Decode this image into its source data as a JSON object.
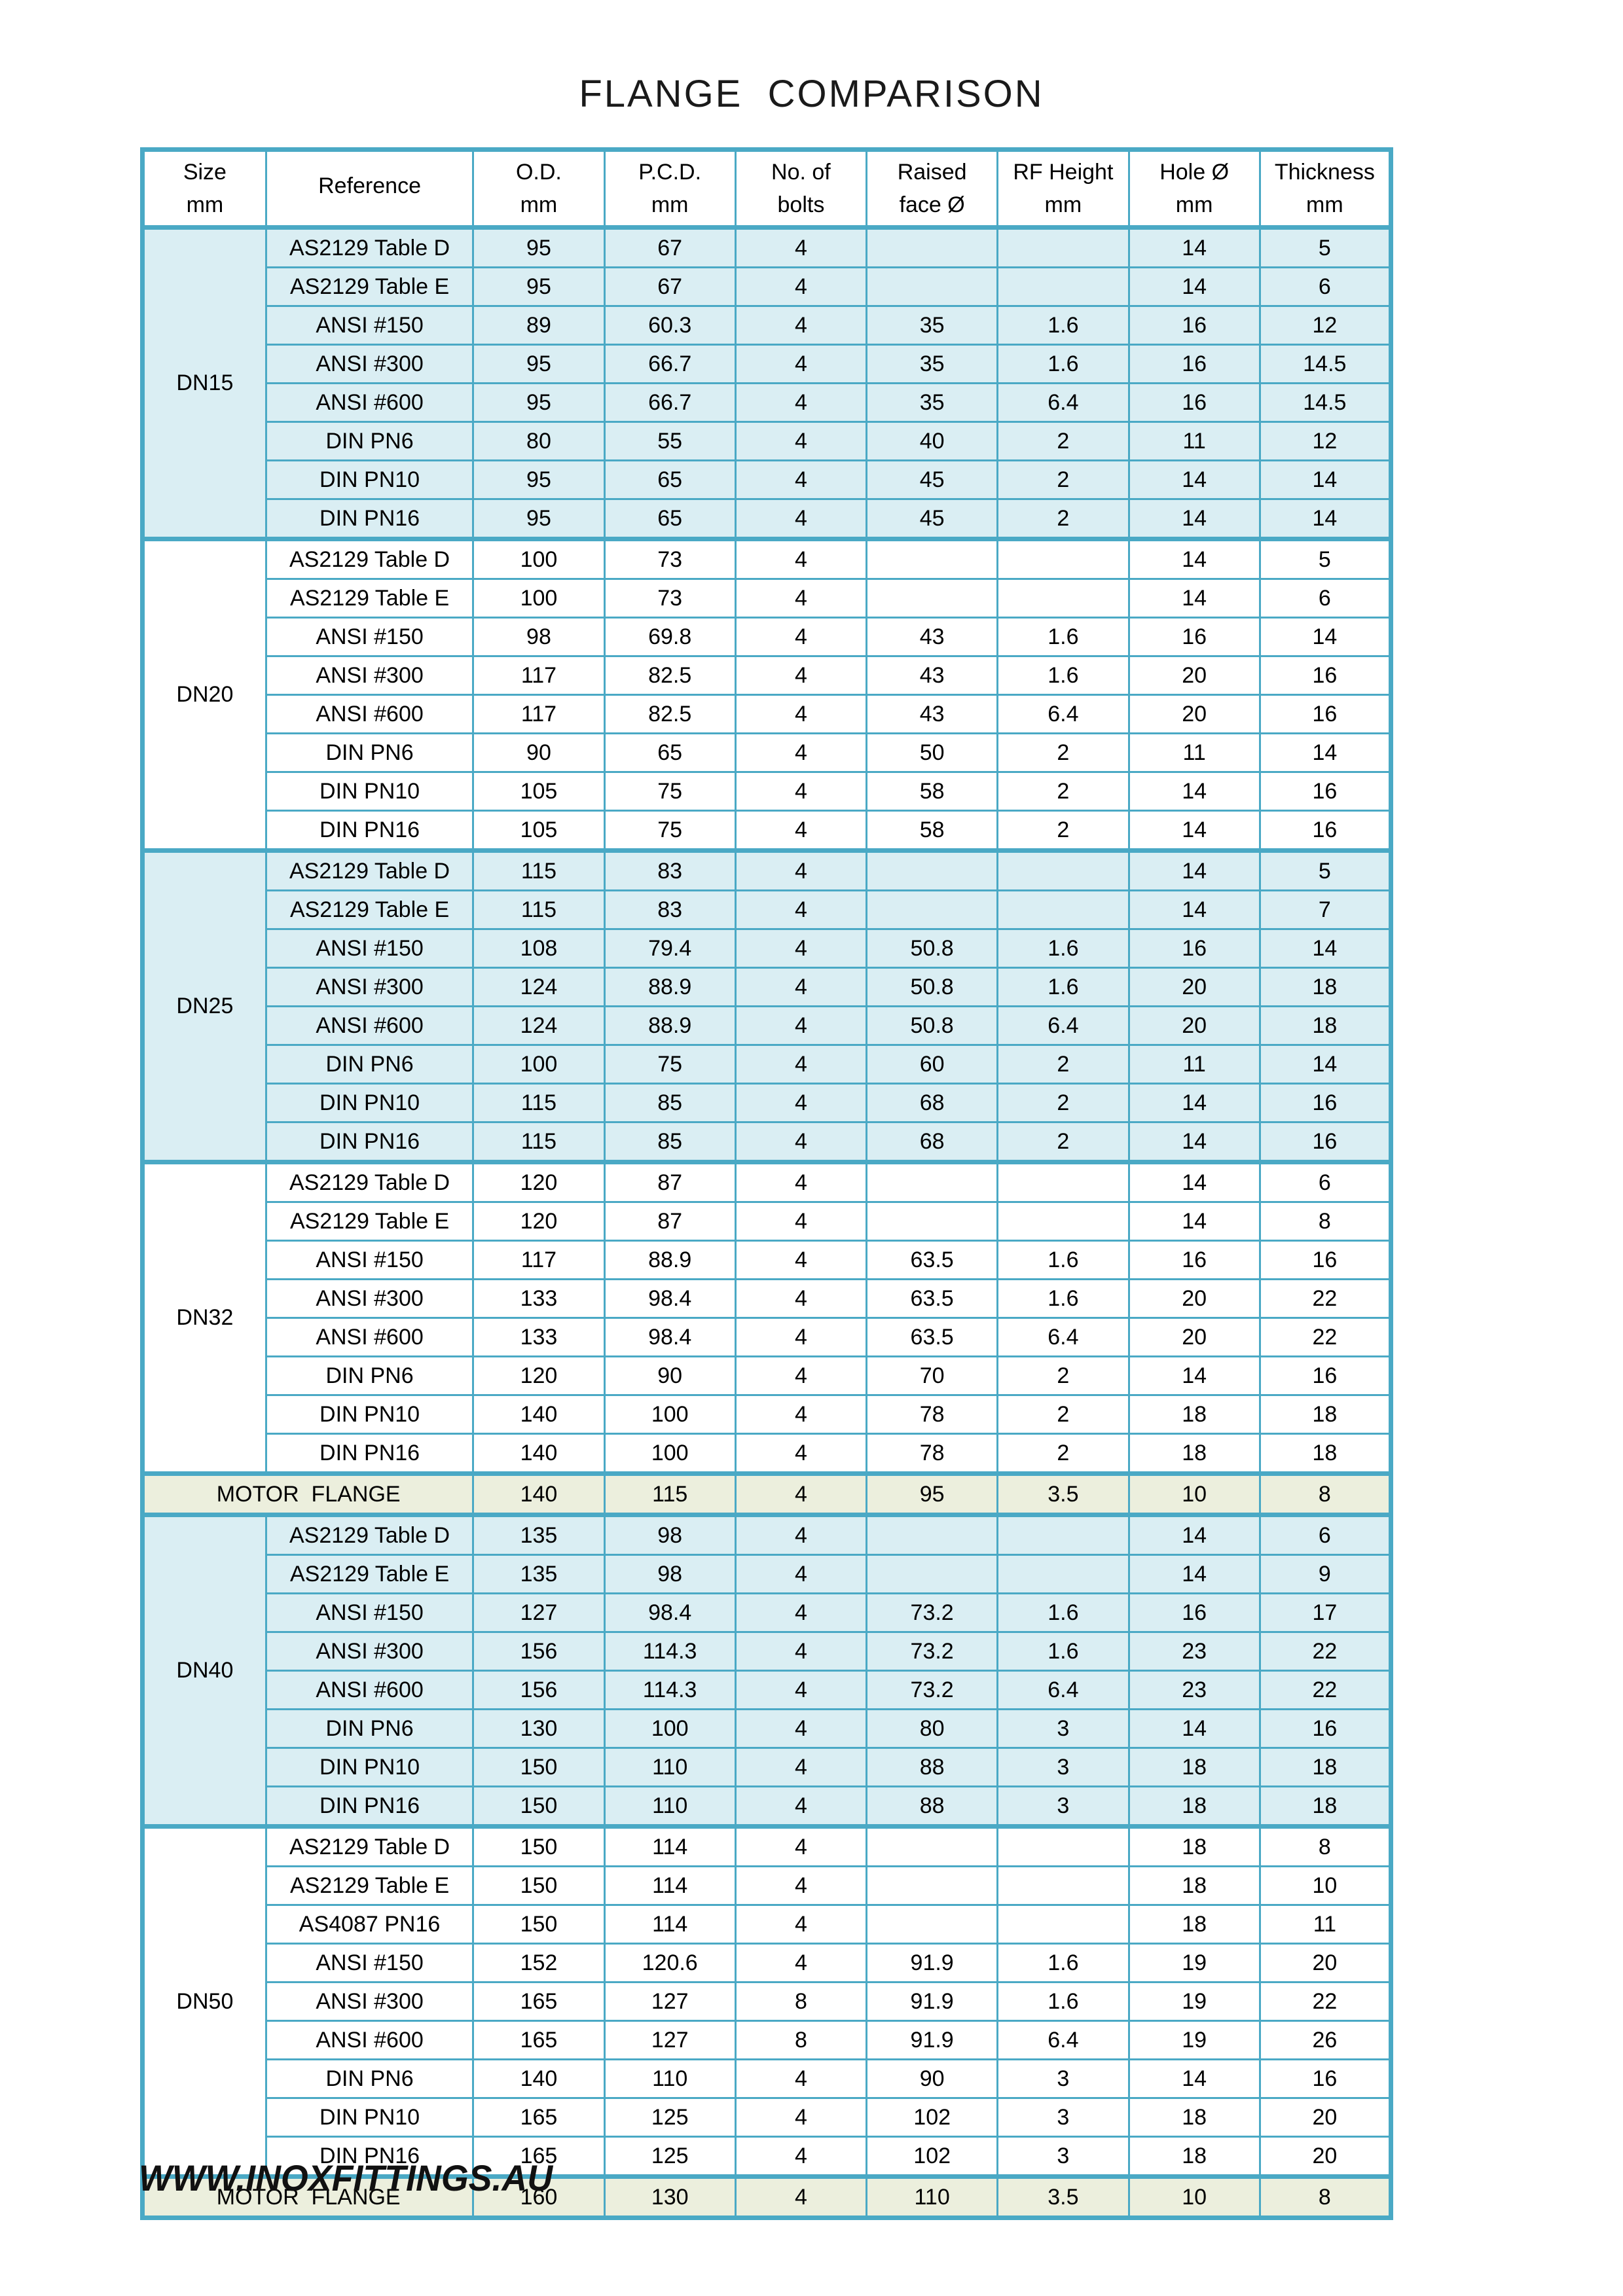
{
  "page": {
    "title": "FLANGE  COMPARISON",
    "footer": "WWW.INOXFITTINGS.AU"
  },
  "colors": {
    "grid_border": "#4aa9c5",
    "block_fill_blue": "#daeef3",
    "block_fill_white": "#ffffff",
    "motor_row_fill": "#ecefdd",
    "text": "#000000",
    "page_bg": "#ffffff"
  },
  "table": {
    "columns": [
      {
        "line1": "Size",
        "line2": "mm"
      },
      {
        "line1": "Reference",
        "line2": ""
      },
      {
        "line1": "O.D.",
        "line2": "mm"
      },
      {
        "line1": "P.C.D.",
        "line2": "mm"
      },
      {
        "line1": "No. of",
        "line2": "bolts"
      },
      {
        "line1": "Raised",
        "line2": "face Ø"
      },
      {
        "line1": "RF Height",
        "line2": "mm"
      },
      {
        "line1": "Hole Ø",
        "line2": "mm"
      },
      {
        "line1": "Thickness",
        "line2": "mm"
      }
    ],
    "groups": [
      {
        "size": "DN15",
        "shade": "blue",
        "rows": [
          {
            "ref": "AS2129 Table D",
            "od": "95",
            "pcd": "67",
            "bolts": "4",
            "rf": "",
            "rfh": "",
            "hole": "14",
            "thk": "5"
          },
          {
            "ref": "AS2129 Table E",
            "od": "95",
            "pcd": "67",
            "bolts": "4",
            "rf": "",
            "rfh": "",
            "hole": "14",
            "thk": "6"
          },
          {
            "ref": "ANSI #150",
            "od": "89",
            "pcd": "60.3",
            "bolts": "4",
            "rf": "35",
            "rfh": "1.6",
            "hole": "16",
            "thk": "12"
          },
          {
            "ref": "ANSI #300",
            "od": "95",
            "pcd": "66.7",
            "bolts": "4",
            "rf": "35",
            "rfh": "1.6",
            "hole": "16",
            "thk": "14.5"
          },
          {
            "ref": "ANSI #600",
            "od": "95",
            "pcd": "66.7",
            "bolts": "4",
            "rf": "35",
            "rfh": "6.4",
            "hole": "16",
            "thk": "14.5"
          },
          {
            "ref": "DIN PN6",
            "od": "80",
            "pcd": "55",
            "bolts": "4",
            "rf": "40",
            "rfh": "2",
            "hole": "11",
            "thk": "12"
          },
          {
            "ref": "DIN PN10",
            "od": "95",
            "pcd": "65",
            "bolts": "4",
            "rf": "45",
            "rfh": "2",
            "hole": "14",
            "thk": "14"
          },
          {
            "ref": "DIN PN16",
            "od": "95",
            "pcd": "65",
            "bolts": "4",
            "rf": "45",
            "rfh": "2",
            "hole": "14",
            "thk": "14"
          }
        ]
      },
      {
        "size": "DN20",
        "shade": "white",
        "rows": [
          {
            "ref": "AS2129 Table D",
            "od": "100",
            "pcd": "73",
            "bolts": "4",
            "rf": "",
            "rfh": "",
            "hole": "14",
            "thk": "5"
          },
          {
            "ref": "AS2129 Table E",
            "od": "100",
            "pcd": "73",
            "bolts": "4",
            "rf": "",
            "rfh": "",
            "hole": "14",
            "thk": "6"
          },
          {
            "ref": "ANSI #150",
            "od": "98",
            "pcd": "69.8",
            "bolts": "4",
            "rf": "43",
            "rfh": "1.6",
            "hole": "16",
            "thk": "14"
          },
          {
            "ref": "ANSI #300",
            "od": "117",
            "pcd": "82.5",
            "bolts": "4",
            "rf": "43",
            "rfh": "1.6",
            "hole": "20",
            "thk": "16"
          },
          {
            "ref": "ANSI #600",
            "od": "117",
            "pcd": "82.5",
            "bolts": "4",
            "rf": "43",
            "rfh": "6.4",
            "hole": "20",
            "thk": "16"
          },
          {
            "ref": "DIN PN6",
            "od": "90",
            "pcd": "65",
            "bolts": "4",
            "rf": "50",
            "rfh": "2",
            "hole": "11",
            "thk": "14"
          },
          {
            "ref": "DIN PN10",
            "od": "105",
            "pcd": "75",
            "bolts": "4",
            "rf": "58",
            "rfh": "2",
            "hole": "14",
            "thk": "16"
          },
          {
            "ref": "DIN PN16",
            "od": "105",
            "pcd": "75",
            "bolts": "4",
            "rf": "58",
            "rfh": "2",
            "hole": "14",
            "thk": "16"
          }
        ]
      },
      {
        "size": "DN25",
        "shade": "blue",
        "rows": [
          {
            "ref": "AS2129 Table D",
            "od": "115",
            "pcd": "83",
            "bolts": "4",
            "rf": "",
            "rfh": "",
            "hole": "14",
            "thk": "5"
          },
          {
            "ref": "AS2129 Table E",
            "od": "115",
            "pcd": "83",
            "bolts": "4",
            "rf": "",
            "rfh": "",
            "hole": "14",
            "thk": "7"
          },
          {
            "ref": "ANSI #150",
            "od": "108",
            "pcd": "79.4",
            "bolts": "4",
            "rf": "50.8",
            "rfh": "1.6",
            "hole": "16",
            "thk": "14"
          },
          {
            "ref": "ANSI #300",
            "od": "124",
            "pcd": "88.9",
            "bolts": "4",
            "rf": "50.8",
            "rfh": "1.6",
            "hole": "20",
            "thk": "18"
          },
          {
            "ref": "ANSI #600",
            "od": "124",
            "pcd": "88.9",
            "bolts": "4",
            "rf": "50.8",
            "rfh": "6.4",
            "hole": "20",
            "thk": "18"
          },
          {
            "ref": "DIN PN6",
            "od": "100",
            "pcd": "75",
            "bolts": "4",
            "rf": "60",
            "rfh": "2",
            "hole": "11",
            "thk": "14"
          },
          {
            "ref": "DIN PN10",
            "od": "115",
            "pcd": "85",
            "bolts": "4",
            "rf": "68",
            "rfh": "2",
            "hole": "14",
            "thk": "16"
          },
          {
            "ref": "DIN PN16",
            "od": "115",
            "pcd": "85",
            "bolts": "4",
            "rf": "68",
            "rfh": "2",
            "hole": "14",
            "thk": "16"
          }
        ]
      },
      {
        "size": "DN32",
        "shade": "white",
        "rows": [
          {
            "ref": "AS2129 Table D",
            "od": "120",
            "pcd": "87",
            "bolts": "4",
            "rf": "",
            "rfh": "",
            "hole": "14",
            "thk": "6"
          },
          {
            "ref": "AS2129 Table E",
            "od": "120",
            "pcd": "87",
            "bolts": "4",
            "rf": "",
            "rfh": "",
            "hole": "14",
            "thk": "8"
          },
          {
            "ref": "ANSI #150",
            "od": "117",
            "pcd": "88.9",
            "bolts": "4",
            "rf": "63.5",
            "rfh": "1.6",
            "hole": "16",
            "thk": "16"
          },
          {
            "ref": "ANSI #300",
            "od": "133",
            "pcd": "98.4",
            "bolts": "4",
            "rf": "63.5",
            "rfh": "1.6",
            "hole": "20",
            "thk": "22"
          },
          {
            "ref": "ANSI #600",
            "od": "133",
            "pcd": "98.4",
            "bolts": "4",
            "rf": "63.5",
            "rfh": "6.4",
            "hole": "20",
            "thk": "22"
          },
          {
            "ref": "DIN PN6",
            "od": "120",
            "pcd": "90",
            "bolts": "4",
            "rf": "70",
            "rfh": "2",
            "hole": "14",
            "thk": "16"
          },
          {
            "ref": "DIN PN10",
            "od": "140",
            "pcd": "100",
            "bolts": "4",
            "rf": "78",
            "rfh": "2",
            "hole": "18",
            "thk": "18"
          },
          {
            "ref": "DIN PN16",
            "od": "140",
            "pcd": "100",
            "bolts": "4",
            "rf": "78",
            "rfh": "2",
            "hole": "18",
            "thk": "18"
          }
        ]
      },
      {
        "motor": true,
        "label": "MOTOR  FLANGE",
        "row": {
          "od": "140",
          "pcd": "115",
          "bolts": "4",
          "rf": "95",
          "rfh": "3.5",
          "hole": "10",
          "thk": "8"
        }
      },
      {
        "size": "DN40",
        "shade": "blue",
        "rows": [
          {
            "ref": "AS2129 Table D",
            "od": "135",
            "pcd": "98",
            "bolts": "4",
            "rf": "",
            "rfh": "",
            "hole": "14",
            "thk": "6"
          },
          {
            "ref": "AS2129 Table E",
            "od": "135",
            "pcd": "98",
            "bolts": "4",
            "rf": "",
            "rfh": "",
            "hole": "14",
            "thk": "9"
          },
          {
            "ref": "ANSI #150",
            "od": "127",
            "pcd": "98.4",
            "bolts": "4",
            "rf": "73.2",
            "rfh": "1.6",
            "hole": "16",
            "thk": "17"
          },
          {
            "ref": "ANSI #300",
            "od": "156",
            "pcd": "114.3",
            "bolts": "4",
            "rf": "73.2",
            "rfh": "1.6",
            "hole": "23",
            "thk": "22"
          },
          {
            "ref": "ANSI #600",
            "od": "156",
            "pcd": "114.3",
            "bolts": "4",
            "rf": "73.2",
            "rfh": "6.4",
            "hole": "23",
            "thk": "22"
          },
          {
            "ref": "DIN PN6",
            "od": "130",
            "pcd": "100",
            "bolts": "4",
            "rf": "80",
            "rfh": "3",
            "hole": "14",
            "thk": "16"
          },
          {
            "ref": "DIN PN10",
            "od": "150",
            "pcd": "110",
            "bolts": "4",
            "rf": "88",
            "rfh": "3",
            "hole": "18",
            "thk": "18"
          },
          {
            "ref": "DIN PN16",
            "od": "150",
            "pcd": "110",
            "bolts": "4",
            "rf": "88",
            "rfh": "3",
            "hole": "18",
            "thk": "18"
          }
        ]
      },
      {
        "size": "DN50",
        "shade": "white",
        "rows": [
          {
            "ref": "AS2129 Table D",
            "od": "150",
            "pcd": "114",
            "bolts": "4",
            "rf": "",
            "rfh": "",
            "hole": "18",
            "thk": "8"
          },
          {
            "ref": "AS2129 Table E",
            "od": "150",
            "pcd": "114",
            "bolts": "4",
            "rf": "",
            "rfh": "",
            "hole": "18",
            "thk": "10"
          },
          {
            "ref": "AS4087 PN16",
            "od": "150",
            "pcd": "114",
            "bolts": "4",
            "rf": "",
            "rfh": "",
            "hole": "18",
            "thk": "11"
          },
          {
            "ref": "ANSI #150",
            "od": "152",
            "pcd": "120.6",
            "bolts": "4",
            "rf": "91.9",
            "rfh": "1.6",
            "hole": "19",
            "thk": "20"
          },
          {
            "ref": "ANSI #300",
            "od": "165",
            "pcd": "127",
            "bolts": "8",
            "rf": "91.9",
            "rfh": "1.6",
            "hole": "19",
            "thk": "22"
          },
          {
            "ref": "ANSI #600",
            "od": "165",
            "pcd": "127",
            "bolts": "8",
            "rf": "91.9",
            "rfh": "6.4",
            "hole": "19",
            "thk": "26"
          },
          {
            "ref": "DIN PN6",
            "od": "140",
            "pcd": "110",
            "bolts": "4",
            "rf": "90",
            "rfh": "3",
            "hole": "14",
            "thk": "16"
          },
          {
            "ref": "DIN PN10",
            "od": "165",
            "pcd": "125",
            "bolts": "4",
            "rf": "102",
            "rfh": "3",
            "hole": "18",
            "thk": "20"
          },
          {
            "ref": "DIN PN16",
            "od": "165",
            "pcd": "125",
            "bolts": "4",
            "rf": "102",
            "rfh": "3",
            "hole": "18",
            "thk": "20"
          }
        ]
      },
      {
        "motor": true,
        "label": "MOTOR  FLANGE",
        "row": {
          "od": "160",
          "pcd": "130",
          "bolts": "4",
          "rf": "110",
          "rfh": "3.5",
          "hole": "10",
          "thk": "8"
        }
      }
    ]
  }
}
